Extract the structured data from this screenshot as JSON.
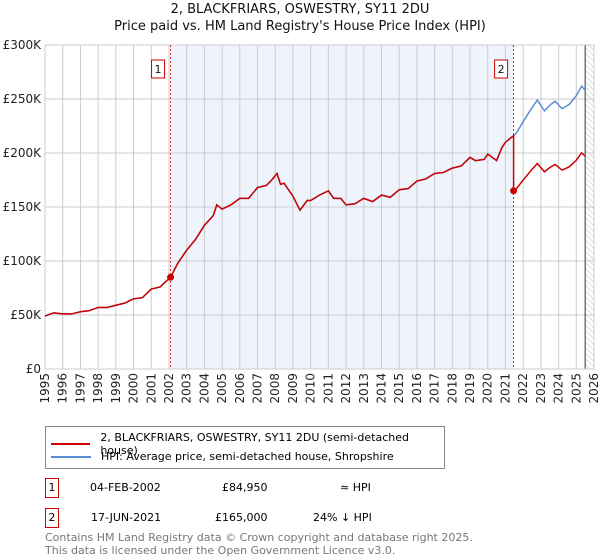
{
  "chart_data": {
    "type": "line",
    "title": "2, BLACKFRIARS, OSWESTRY, SY11 2DU",
    "subtitle": "Price paid vs. HM Land Registry's House Price Index (HPI)",
    "xlim": [
      1995,
      2026
    ],
    "ylim": [
      0,
      300000
    ],
    "y_ticks": [
      {
        "v": 0,
        "label": "£0"
      },
      {
        "v": 50000,
        "label": "£50K"
      },
      {
        "v": 100000,
        "label": "£100K"
      },
      {
        "v": 150000,
        "label": "£150K"
      },
      {
        "v": 200000,
        "label": "£200K"
      },
      {
        "v": 250000,
        "label": "£250K"
      },
      {
        "v": 300000,
        "label": "£300K"
      }
    ],
    "x_ticks": [
      "1995",
      "1996",
      "1997",
      "1998",
      "1999",
      "2000",
      "2001",
      "2002",
      "2003",
      "2004",
      "2005",
      "2006",
      "2007",
      "2008",
      "2009",
      "2010",
      "2011",
      "2012",
      "2013",
      "2014",
      "2015",
      "2016",
      "2017",
      "2018",
      "2019",
      "2020",
      "2021",
      "2022",
      "2023",
      "2024",
      "2025",
      "2026"
    ],
    "grid": true,
    "shaded_range": [
      2002.09,
      2021.46
    ],
    "forecast_hatch_from": 2025.5,
    "colors": {
      "property": "#cc0000",
      "hpi": "#5b8fd4",
      "shade": "#eef3fc"
    },
    "hpi_series": {
      "name": "HPI: Average price, semi-detached house, Shropshire",
      "points": [
        [
          1995,
          49
        ],
        [
          1995.5,
          52
        ],
        [
          1996,
          51
        ],
        [
          1996.5,
          51
        ],
        [
          1997,
          53
        ],
        [
          1997.5,
          54
        ],
        [
          1998,
          57
        ],
        [
          1998.5,
          57
        ],
        [
          1999,
          59
        ],
        [
          1999.5,
          61
        ],
        [
          2000,
          65
        ],
        [
          2000.5,
          66
        ],
        [
          2001,
          74
        ],
        [
          2001.5,
          76
        ],
        [
          2002.09,
          85
        ],
        [
          2002.5,
          98
        ],
        [
          2003,
          110
        ],
        [
          2003.5,
          120
        ],
        [
          2004,
          133
        ],
        [
          2004.5,
          142
        ],
        [
          2004.7,
          152
        ],
        [
          2005,
          148
        ],
        [
          2005.5,
          152
        ],
        [
          2006,
          158
        ],
        [
          2006.5,
          158
        ],
        [
          2007,
          168
        ],
        [
          2007.5,
          170
        ],
        [
          2007.8,
          175
        ],
        [
          2008.1,
          181
        ],
        [
          2008.3,
          171
        ],
        [
          2008.5,
          172
        ],
        [
          2009,
          160
        ],
        [
          2009.4,
          147
        ],
        [
          2009.8,
          156
        ],
        [
          2010,
          156
        ],
        [
          2010.5,
          161
        ],
        [
          2011,
          165
        ],
        [
          2011.3,
          158
        ],
        [
          2011.7,
          158
        ],
        [
          2012,
          152
        ],
        [
          2012.5,
          153
        ],
        [
          2013,
          158
        ],
        [
          2013.5,
          155
        ],
        [
          2014,
          161
        ],
        [
          2014.5,
          159
        ],
        [
          2015,
          166
        ],
        [
          2015.5,
          167
        ],
        [
          2016,
          174
        ],
        [
          2016.5,
          176
        ],
        [
          2017,
          181
        ],
        [
          2017.5,
          182
        ],
        [
          2018,
          186
        ],
        [
          2018.5,
          188
        ],
        [
          2019,
          196
        ],
        [
          2019.3,
          193
        ],
        [
          2019.8,
          194
        ],
        [
          2020,
          199
        ],
        [
          2020.5,
          193
        ],
        [
          2020.8,
          205
        ],
        [
          2021,
          210
        ],
        [
          2021.3,
          214
        ],
        [
          2021.46,
          216
        ],
        [
          2021.6,
          218
        ],
        [
          2022,
          229
        ],
        [
          2022.5,
          242
        ],
        [
          2022.8,
          249
        ],
        [
          2023.2,
          239
        ],
        [
          2023.5,
          244
        ],
        [
          2023.8,
          248
        ],
        [
          2024.2,
          241
        ],
        [
          2024.6,
          245
        ],
        [
          2025,
          253
        ],
        [
          2025.3,
          262
        ],
        [
          2025.5,
          258
        ]
      ]
    },
    "property_series": {
      "name": "2, BLACKFRIARS, OSWESTRY, SY11 2DU (semi-detached house)",
      "post_sale_ratio_to_hpi": 0.764
    },
    "sales": [
      {
        "id": "1",
        "date": "04-FEB-2002",
        "x": 2002.09,
        "price": 84950,
        "price_label": "£84,950",
        "vs_hpi": "≈ HPI"
      },
      {
        "id": "2",
        "date": "17-JUN-2021",
        "x": 2021.46,
        "price": 165000,
        "price_label": "£165,000",
        "vs_hpi": "24% ↓ HPI"
      }
    ]
  },
  "footer": {
    "line1": "Contains HM Land Registry data © Crown copyright and database right 2025.",
    "line2": "This data is licensed under the Open Government Licence v3.0."
  }
}
